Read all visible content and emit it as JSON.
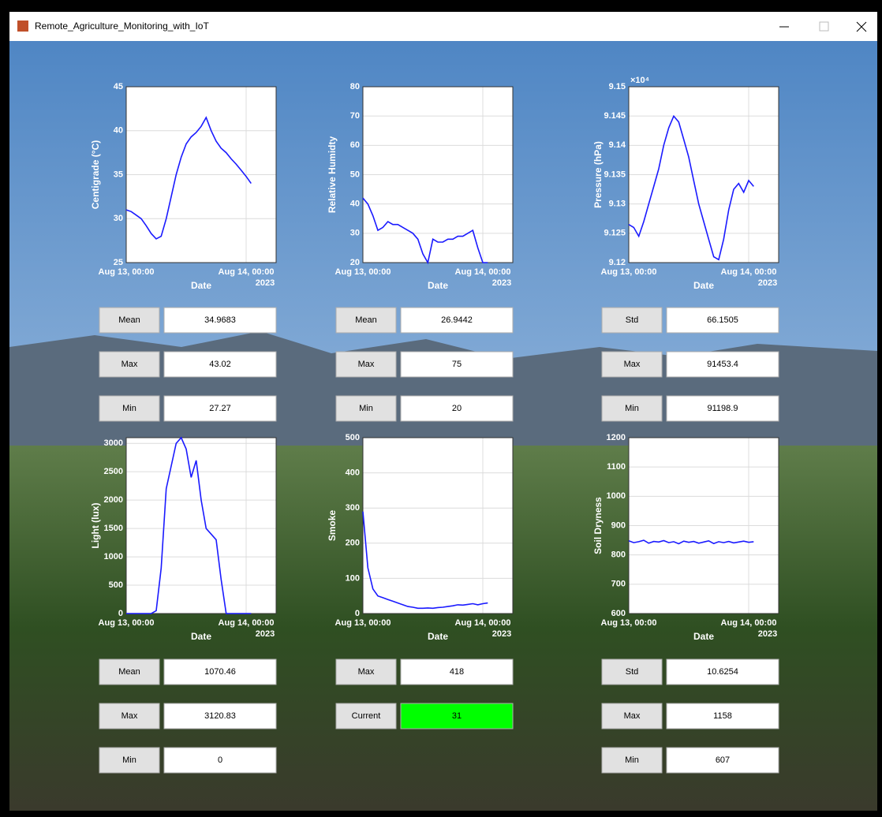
{
  "window": {
    "title": "Remote_Agriculture_Monitoring_with_IoT"
  },
  "chart_data": [
    {
      "type": "line",
      "ylabel": "Centigrade (°C)",
      "xlabel": "Date",
      "x_year_label": "2023",
      "color": "#1a1aff",
      "xlim": [
        "2023-08-13 00:00",
        "2023-08-14 06:00"
      ],
      "xticks": [
        {
          "value": "2023-08-13 00:00",
          "label": "Aug 13, 00:00"
        },
        {
          "value": "2023-08-14 00:00",
          "label": "Aug 14, 00:00"
        }
      ],
      "ylim": [
        25,
        45
      ],
      "yticks": [
        25,
        30,
        35,
        40,
        45
      ],
      "x": [
        "2023-08-13 00:00",
        "2023-08-13 01:00",
        "2023-08-13 02:00",
        "2023-08-13 03:00",
        "2023-08-13 04:00",
        "2023-08-13 05:00",
        "2023-08-13 06:00",
        "2023-08-13 07:00",
        "2023-08-13 08:00",
        "2023-08-13 09:00",
        "2023-08-13 10:00",
        "2023-08-13 11:00",
        "2023-08-13 12:00",
        "2023-08-13 13:00",
        "2023-08-13 14:00",
        "2023-08-13 15:00",
        "2023-08-13 16:00",
        "2023-08-13 17:00",
        "2023-08-13 18:00",
        "2023-08-13 19:00",
        "2023-08-13 20:00",
        "2023-08-13 21:00",
        "2023-08-13 22:00",
        "2023-08-13 23:00",
        "2023-08-14 00:00",
        "2023-08-14 01:00"
      ],
      "values": [
        31,
        30.8,
        30.4,
        30,
        29.2,
        28.3,
        27.7,
        28,
        30,
        32.5,
        35,
        37,
        38.5,
        39.3,
        39.8,
        40.5,
        41.5,
        40,
        38.8,
        38,
        37.5,
        36.8,
        36.2,
        35.5,
        34.8,
        34
      ]
    },
    {
      "type": "line",
      "ylabel": "Relative Humidty",
      "xlabel": "Date",
      "x_year_label": "2023",
      "color": "#1a1aff",
      "xlim": [
        "2023-08-13 00:00",
        "2023-08-14 06:00"
      ],
      "xticks": [
        {
          "value": "2023-08-13 00:00",
          "label": "Aug 13, 00:00"
        },
        {
          "value": "2023-08-14 00:00",
          "label": "Aug 14, 00:00"
        }
      ],
      "ylim": [
        20,
        80
      ],
      "yticks": [
        20,
        30,
        40,
        50,
        60,
        70,
        80
      ],
      "x": [
        "2023-08-13 00:00",
        "2023-08-13 01:00",
        "2023-08-13 02:00",
        "2023-08-13 03:00",
        "2023-08-13 04:00",
        "2023-08-13 05:00",
        "2023-08-13 06:00",
        "2023-08-13 07:00",
        "2023-08-13 08:00",
        "2023-08-13 09:00",
        "2023-08-13 10:00",
        "2023-08-13 11:00",
        "2023-08-13 12:00",
        "2023-08-13 13:00",
        "2023-08-13 14:00",
        "2023-08-13 15:00",
        "2023-08-13 16:00",
        "2023-08-13 17:00",
        "2023-08-13 18:00",
        "2023-08-13 19:00",
        "2023-08-13 20:00",
        "2023-08-13 21:00",
        "2023-08-13 22:00",
        "2023-08-13 23:00",
        "2023-08-14 00:00",
        "2023-08-14 01:00"
      ],
      "values": [
        42,
        40,
        36,
        31,
        32,
        34,
        33,
        33,
        32,
        31,
        30,
        28,
        23,
        20,
        28,
        27,
        27,
        28,
        28,
        29,
        29,
        30,
        31,
        25,
        20,
        20
      ]
    },
    {
      "type": "line",
      "ylabel": "Pressure (hPa)",
      "xlabel": "Date",
      "x_year_label": "2023",
      "y_exponent_label": "×10⁴",
      "color": "#1a1aff",
      "xlim": [
        "2023-08-13 00:00",
        "2023-08-14 06:00"
      ],
      "xticks": [
        {
          "value": "2023-08-13 00:00",
          "label": "Aug 13, 00:00"
        },
        {
          "value": "2023-08-14 00:00",
          "label": "Aug 14, 00:00"
        }
      ],
      "ylim": [
        91200,
        91500
      ],
      "yticks": [
        {
          "value": 91200,
          "label": "9.12"
        },
        {
          "value": 91250,
          "label": "9.125"
        },
        {
          "value": 91300,
          "label": "9.13"
        },
        {
          "value": 91350,
          "label": "9.135"
        },
        {
          "value": 91400,
          "label": "9.14"
        },
        {
          "value": 91450,
          "label": "9.145"
        },
        {
          "value": 91500,
          "label": "9.15"
        }
      ],
      "x": [
        "2023-08-13 00:00",
        "2023-08-13 01:00",
        "2023-08-13 02:00",
        "2023-08-13 03:00",
        "2023-08-13 04:00",
        "2023-08-13 05:00",
        "2023-08-13 06:00",
        "2023-08-13 07:00",
        "2023-08-13 08:00",
        "2023-08-13 09:00",
        "2023-08-13 10:00",
        "2023-08-13 11:00",
        "2023-08-13 12:00",
        "2023-08-13 13:00",
        "2023-08-13 14:00",
        "2023-08-13 15:00",
        "2023-08-13 16:00",
        "2023-08-13 17:00",
        "2023-08-13 18:00",
        "2023-08-13 19:00",
        "2023-08-13 20:00",
        "2023-08-13 21:00",
        "2023-08-13 22:00",
        "2023-08-13 23:00",
        "2023-08-14 00:00",
        "2023-08-14 01:00"
      ],
      "values": [
        91265,
        91260,
        91245,
        91270,
        91300,
        91330,
        91360,
        91400,
        91430,
        91450,
        91440,
        91410,
        91380,
        91340,
        91300,
        91270,
        91240,
        91210,
        91205,
        91240,
        91290,
        91325,
        91335,
        91320,
        91340,
        91330
      ]
    },
    {
      "type": "line",
      "ylabel": "Light (lux)",
      "xlabel": "Date",
      "x_year_label": "2023",
      "color": "#1a1aff",
      "xlim": [
        "2023-08-13 00:00",
        "2023-08-14 06:00"
      ],
      "xticks": [
        {
          "value": "2023-08-13 00:00",
          "label": "Aug 13, 00:00"
        },
        {
          "value": "2023-08-14 00:00",
          "label": "Aug 14, 00:00"
        }
      ],
      "ylim": [
        0,
        3100
      ],
      "yticks": [
        0,
        500,
        1000,
        1500,
        2000,
        2500,
        3000
      ],
      "x": [
        "2023-08-13 00:00",
        "2023-08-13 01:00",
        "2023-08-13 02:00",
        "2023-08-13 03:00",
        "2023-08-13 04:00",
        "2023-08-13 05:00",
        "2023-08-13 06:00",
        "2023-08-13 07:00",
        "2023-08-13 08:00",
        "2023-08-13 09:00",
        "2023-08-13 10:00",
        "2023-08-13 11:00",
        "2023-08-13 12:00",
        "2023-08-13 13:00",
        "2023-08-13 14:00",
        "2023-08-13 15:00",
        "2023-08-13 16:00",
        "2023-08-13 17:00",
        "2023-08-13 18:00",
        "2023-08-13 19:00",
        "2023-08-13 20:00",
        "2023-08-13 21:00",
        "2023-08-13 22:00",
        "2023-08-13 23:00",
        "2023-08-14 00:00",
        "2023-08-14 01:00"
      ],
      "values": [
        0,
        0,
        0,
        0,
        0,
        0,
        50,
        800,
        2200,
        2600,
        3000,
        3100,
        2900,
        2400,
        2700,
        2000,
        1500,
        1400,
        1300,
        600,
        0,
        0,
        0,
        0,
        0,
        0
      ]
    },
    {
      "type": "line",
      "ylabel": "Smoke",
      "xlabel": "Date",
      "x_year_label": "2023",
      "color": "#1a1aff",
      "xlim": [
        "2023-08-13 00:00",
        "2023-08-14 06:00"
      ],
      "xticks": [
        {
          "value": "2023-08-13 00:00",
          "label": "Aug 13, 00:00"
        },
        {
          "value": "2023-08-14 00:00",
          "label": "Aug 14, 00:00"
        }
      ],
      "ylim": [
        0,
        500
      ],
      "yticks": [
        0,
        100,
        200,
        300,
        400,
        500
      ],
      "x": [
        "2023-08-13 00:00",
        "2023-08-13 01:00",
        "2023-08-13 02:00",
        "2023-08-13 03:00",
        "2023-08-13 04:00",
        "2023-08-13 05:00",
        "2023-08-13 06:00",
        "2023-08-13 07:00",
        "2023-08-13 08:00",
        "2023-08-13 09:00",
        "2023-08-13 10:00",
        "2023-08-13 11:00",
        "2023-08-13 12:00",
        "2023-08-13 13:00",
        "2023-08-13 14:00",
        "2023-08-13 15:00",
        "2023-08-13 16:00",
        "2023-08-13 17:00",
        "2023-08-13 18:00",
        "2023-08-13 19:00",
        "2023-08-13 20:00",
        "2023-08-13 21:00",
        "2023-08-13 22:00",
        "2023-08-13 23:00",
        "2023-08-14 00:00",
        "2023-08-14 01:00"
      ],
      "values": [
        290,
        130,
        70,
        50,
        45,
        40,
        35,
        30,
        25,
        20,
        18,
        15,
        15,
        16,
        15,
        17,
        18,
        20,
        22,
        25,
        24,
        26,
        28,
        25,
        28,
        30
      ]
    },
    {
      "type": "line",
      "ylabel": "Soil Dryness",
      "xlabel": "Date",
      "x_year_label": "2023",
      "color": "#1a1aff",
      "xlim": [
        "2023-08-13 00:00",
        "2023-08-14 06:00"
      ],
      "xticks": [
        {
          "value": "2023-08-13 00:00",
          "label": "Aug 13, 00:00"
        },
        {
          "value": "2023-08-14 00:00",
          "label": "Aug 14, 00:00"
        }
      ],
      "ylim": [
        600,
        1200
      ],
      "yticks": [
        600,
        700,
        800,
        900,
        1000,
        1100,
        1200
      ],
      "x": [
        "2023-08-13 00:00",
        "2023-08-13 01:00",
        "2023-08-13 02:00",
        "2023-08-13 03:00",
        "2023-08-13 04:00",
        "2023-08-13 05:00",
        "2023-08-13 06:00",
        "2023-08-13 07:00",
        "2023-08-13 08:00",
        "2023-08-13 09:00",
        "2023-08-13 10:00",
        "2023-08-13 11:00",
        "2023-08-13 12:00",
        "2023-08-13 13:00",
        "2023-08-13 14:00",
        "2023-08-13 15:00",
        "2023-08-13 16:00",
        "2023-08-13 17:00",
        "2023-08-13 18:00",
        "2023-08-13 19:00",
        "2023-08-13 20:00",
        "2023-08-13 21:00",
        "2023-08-13 22:00",
        "2023-08-13 23:00",
        "2023-08-14 00:00",
        "2023-08-14 01:00"
      ],
      "values": [
        848,
        842,
        845,
        850,
        840,
        846,
        844,
        849,
        842,
        845,
        838,
        847,
        843,
        846,
        840,
        844,
        848,
        839,
        845,
        842,
        846,
        841,
        844,
        847,
        843,
        845
      ]
    }
  ],
  "stats": [
    [
      {
        "label": "Mean",
        "value": "34.9683"
      },
      {
        "label": "Max",
        "value": "43.02"
      },
      {
        "label": "Min",
        "value": "27.27"
      }
    ],
    [
      {
        "label": "Mean",
        "value": "26.9442"
      },
      {
        "label": "Max",
        "value": "75"
      },
      {
        "label": "Min",
        "value": "20"
      }
    ],
    [
      {
        "label": "Std",
        "value": "66.1505"
      },
      {
        "label": "Max",
        "value": "91453.4"
      },
      {
        "label": "Min",
        "value": "91198.9"
      }
    ],
    [
      {
        "label": "Mean",
        "value": "1070.46"
      },
      {
        "label": "Max",
        "value": "3120.83"
      },
      {
        "label": "Min",
        "value": "0"
      }
    ],
    [
      {
        "label": "Max",
        "value": "418"
      },
      {
        "label": "Current",
        "value": "31",
        "color": "#00ff00"
      }
    ],
    [
      {
        "label": "Std",
        "value": "10.6254"
      },
      {
        "label": "Max",
        "value": "1158"
      },
      {
        "label": "Min",
        "value": "607"
      }
    ]
  ]
}
